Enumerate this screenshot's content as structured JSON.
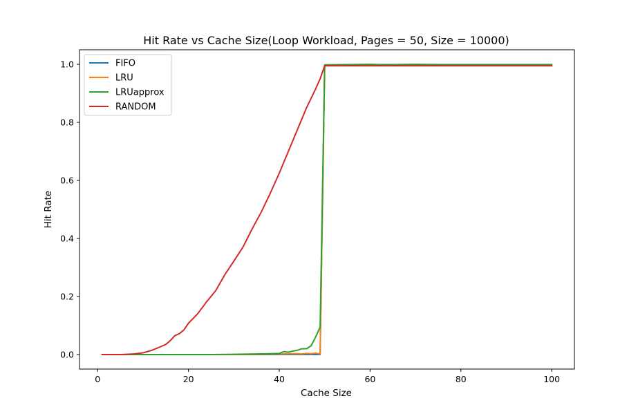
{
  "chart_data": {
    "type": "line",
    "title": "Hit Rate vs Cache Size(Loop Workload, Pages = 50, Size = 10000)",
    "xlabel": "Cache Size",
    "ylabel": "Hit Rate",
    "xlim": [
      -4,
      105
    ],
    "ylim": [
      -0.05,
      1.05
    ],
    "xticks": [
      0,
      20,
      40,
      60,
      80,
      100
    ],
    "yticks": [
      0.0,
      0.2,
      0.4,
      0.6,
      0.8,
      1.0
    ],
    "xtick_labels": [
      "0",
      "20",
      "40",
      "60",
      "80",
      "100"
    ],
    "ytick_labels": [
      "0.0",
      "0.2",
      "0.4",
      "0.6",
      "0.8",
      "1.0"
    ],
    "grid": false,
    "legend_position": "top-left",
    "series": [
      {
        "name": "FIFO",
        "color": "#1f77b4",
        "x": [
          1,
          49,
          50,
          100
        ],
        "y": [
          0.0,
          0.0,
          0.995,
          0.995
        ]
      },
      {
        "name": "LRU",
        "color": "#ff7f0e",
        "x": [
          1,
          30,
          40,
          44,
          45,
          46,
          47,
          48,
          49,
          50,
          60,
          100
        ],
        "y": [
          0.0,
          0.0,
          0.002,
          0.003,
          0.002,
          0.004,
          0.003,
          0.005,
          0.002,
          0.998,
          0.998,
          0.998
        ]
      },
      {
        "name": "LRUapprox",
        "color": "#2ca02c",
        "x": [
          1,
          25,
          30,
          35,
          38,
          40,
          41,
          42,
          43,
          44,
          45,
          46,
          47,
          48,
          49,
          50,
          55,
          60,
          62,
          65,
          70,
          75,
          80,
          85,
          90,
          95,
          100
        ],
        "y": [
          0.0,
          0.0,
          0.001,
          0.002,
          0.003,
          0.004,
          0.01,
          0.008,
          0.012,
          0.015,
          0.02,
          0.02,
          0.03,
          0.06,
          0.095,
          0.998,
          0.999,
          1.0,
          0.999,
          0.999,
          1.0,
          0.999,
          0.999,
          0.999,
          0.999,
          0.999,
          0.999
        ]
      },
      {
        "name": "RANDOM",
        "color": "#d62728",
        "x": [
          1,
          5,
          8,
          10,
          12,
          14,
          15,
          16,
          17,
          18,
          19,
          20,
          22,
          24,
          26,
          28,
          30,
          32,
          34,
          36,
          38,
          40,
          42,
          44,
          46,
          48,
          49,
          50,
          60,
          70,
          80,
          90,
          100
        ],
        "y": [
          0.0,
          0.0,
          0.002,
          0.006,
          0.015,
          0.028,
          0.035,
          0.048,
          0.065,
          0.072,
          0.085,
          0.108,
          0.14,
          0.182,
          0.22,
          0.275,
          0.322,
          0.37,
          0.432,
          0.49,
          0.555,
          0.625,
          0.7,
          0.775,
          0.85,
          0.915,
          0.95,
          0.995,
          0.995,
          0.995,
          0.995,
          0.995,
          0.995
        ]
      }
    ]
  }
}
